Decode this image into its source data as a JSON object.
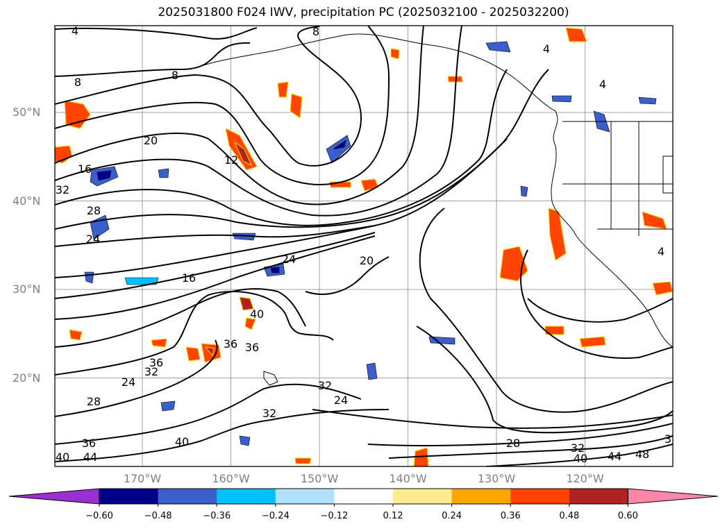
{
  "title": "2025031800 F024 IWV, precipitation PC (2025032100 - 2025032200)",
  "map": {
    "lat_labels": [
      {
        "text": "50°N",
        "lat": 50
      },
      {
        "text": "40°N",
        "lat": 40
      },
      {
        "text": "30°N",
        "lat": 30
      },
      {
        "text": "20°N",
        "lat": 20
      }
    ],
    "lon_labels": [
      {
        "text": "170°W",
        "lon": -170
      },
      {
        "text": "160°W",
        "lon": -160
      },
      {
        "text": "150°W",
        "lon": -150
      },
      {
        "text": "140°W",
        "lon": -140
      },
      {
        "text": "130°W",
        "lon": -130
      },
      {
        "text": "120°W",
        "lon": -120
      }
    ],
    "gridlines": true,
    "iwv_contour_labels": [
      "4",
      "8",
      "12",
      "16",
      "20",
      "24",
      "28",
      "32",
      "36",
      "40",
      "44",
      "48"
    ]
  },
  "colorbar": {
    "ticks": [
      "−0.60",
      "−0.48",
      "−0.36",
      "−0.24",
      "−0.12",
      "0.12",
      "0.24",
      "0.36",
      "0.48",
      "0.60"
    ],
    "colors": [
      "#9b30d0",
      "#00008b",
      "#3a5fcd",
      "#00bfff",
      "#b0e2ff",
      "#ffffff",
      "#ffeb8f",
      "#ffa500",
      "#ff4500",
      "#b22222",
      "#ff86a8"
    ]
  },
  "colors": {
    "contour": "#000000",
    "grid": "#a0a0a0",
    "coast": "#000000"
  }
}
